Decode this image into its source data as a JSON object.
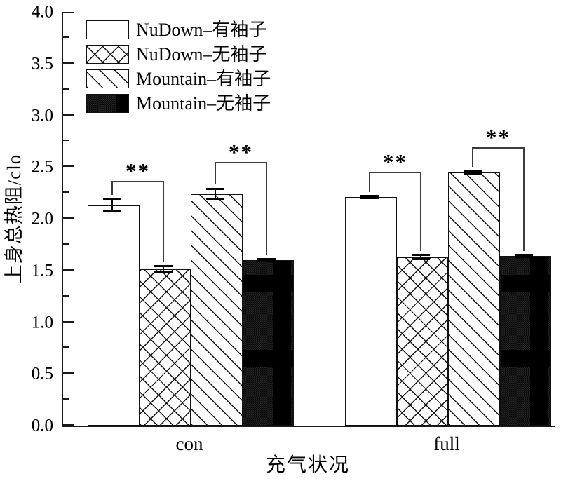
{
  "figure": {
    "background": "#ffffff",
    "ink": "#000000",
    "bracket_color": "#3c3c3c"
  },
  "chart_data": {
    "type": "bar",
    "title": "",
    "xlabel": "充气状况",
    "ylabel": "上身总热阻/clo",
    "categories": [
      "con",
      "full"
    ],
    "series": [
      {
        "name": "NuDown–有袖子",
        "pattern": "plain-white",
        "values": [
          2.13,
          2.21
        ],
        "errors": [
          0.06,
          0.01
        ]
      },
      {
        "name": "NuDown–无袖子",
        "pattern": "crosshatch",
        "values": [
          1.51,
          1.63
        ],
        "errors": [
          0.03,
          0.02
        ]
      },
      {
        "name": "Mountain–有袖子",
        "pattern": "diagonal",
        "values": [
          2.24,
          2.45
        ],
        "errors": [
          0.05,
          0.01
        ]
      },
      {
        "name": "Mountain–无袖子",
        "pattern": "solid-black",
        "values": [
          1.6,
          1.64
        ],
        "errors": [
          0.01,
          0.01
        ]
      }
    ],
    "ylim": [
      0.0,
      4.0
    ],
    "ytick_labels": [
      "0.0",
      "0.5",
      "1.0",
      "1.5",
      "2.0",
      "2.5",
      "3.0",
      "3.5",
      "4.0"
    ],
    "minor_tick_step": 0.25,
    "grid": false,
    "legend_position": "top-left",
    "significance_brackets": [
      {
        "category": "con",
        "from_series": 0,
        "to_series": 1,
        "label": "**"
      },
      {
        "category": "con",
        "from_series": 2,
        "to_series": 3,
        "label": "**"
      },
      {
        "category": "full",
        "from_series": 0,
        "to_series": 1,
        "label": "**"
      },
      {
        "category": "full",
        "from_series": 2,
        "to_series": 3,
        "label": "**"
      }
    ]
  }
}
